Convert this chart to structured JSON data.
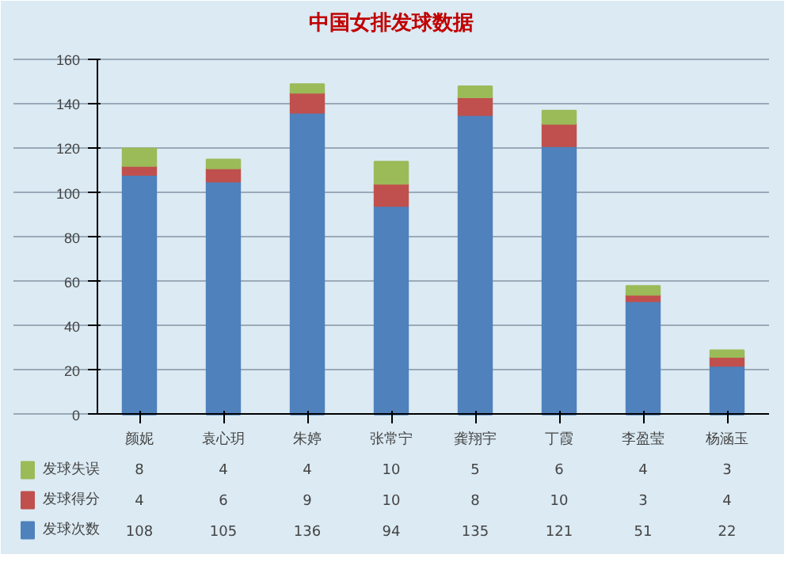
{
  "chart_data": {
    "type": "bar",
    "title": "中国女排发球数据",
    "stacked": true,
    "categories": [
      "颜妮",
      "袁心玥",
      "朱婷",
      "张常宁",
      "龚翔宇",
      "丁霞",
      "李盈莹",
      "杨涵玉"
    ],
    "series": [
      {
        "name": "发球次数",
        "color": "#4f81bd",
        "values": [
          108,
          105,
          136,
          94,
          135,
          121,
          51,
          22
        ]
      },
      {
        "name": "发球得分",
        "color": "#c0504d",
        "values": [
          4,
          6,
          9,
          10,
          8,
          10,
          3,
          4
        ]
      },
      {
        "name": "发球失误",
        "color": "#9bbb59",
        "values": [
          8,
          4,
          4,
          10,
          5,
          6,
          4,
          3
        ]
      }
    ],
    "ylim": [
      0,
      160
    ],
    "yticks": [
      0,
      20,
      40,
      60,
      80,
      100,
      120,
      140,
      160
    ],
    "grid": "y",
    "legend": "bottom",
    "data_labels": true
  }
}
